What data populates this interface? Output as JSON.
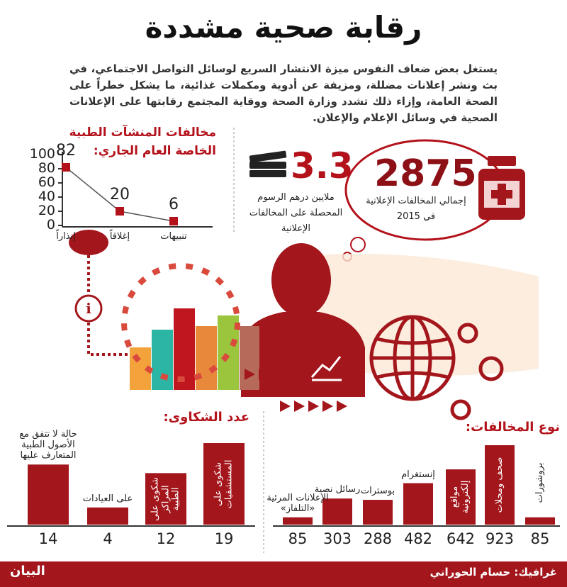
{
  "header": {
    "title": "رقابة صحية مشددة",
    "intro": "يستغل بعض ضعاف النفوس ميزة الانتشار السريع لوسائل التواصل الاجتماعي، في بث ونشر إعلانات مضللة، ومزيفة عن أدوية ومكملات غذائية، ما يشكل خطراً على الصحة العامة، وإزاء ذلك تشدد وزارة الصحة ووقاية المجتمع رقابتها على الإعلانات الصحية في وسائل الإعلام والإعلان."
  },
  "stats": [
    {
      "value": "3.3",
      "label": "ملايين درهم الرسوم المحصلة على المخالفات الإعلانية"
    },
    {
      "value": "2875",
      "label": "إجمالي المخالفات الإعلانية في 2015"
    }
  ],
  "chart_data": [
    {
      "type": "line",
      "title": "مخالفات المنشآت الطبية الخاصة العام الجاري:",
      "categories": [
        "إنذاراً",
        "إغلاقاً",
        "تنبيهات"
      ],
      "values": [
        82,
        20,
        6
      ],
      "color": "#b3121b",
      "ylim": [
        0,
        100
      ],
      "yticks": [
        0,
        20,
        40,
        60,
        80,
        100
      ]
    },
    {
      "type": "bar",
      "title": "عدد الشكاوى:",
      "categories": [
        "حالة لا تتفق مع الأصول الطبية المتعارف عليها",
        "على العيادات",
        "شكوى على المراكز الطبية",
        "شكوى على المستشفيات"
      ],
      "values": [
        14,
        4,
        12,
        19
      ],
      "color": "#a3161c"
    },
    {
      "type": "bar",
      "title": "نوع المخالفات:",
      "categories": [
        "الإعلانات المرئية «التلفاز»",
        "رسائل نصية",
        "بوسترات",
        "إنستغرام",
        "مواقع إلكترونية",
        "صحف ومجلات",
        "بروشورات"
      ],
      "values": [
        85,
        303,
        288,
        482,
        642,
        923,
        85
      ],
      "color": "#a3161c"
    }
  ],
  "footer": {
    "credit": "غرافيك: حسام الحوراني",
    "brand": "البيان"
  }
}
